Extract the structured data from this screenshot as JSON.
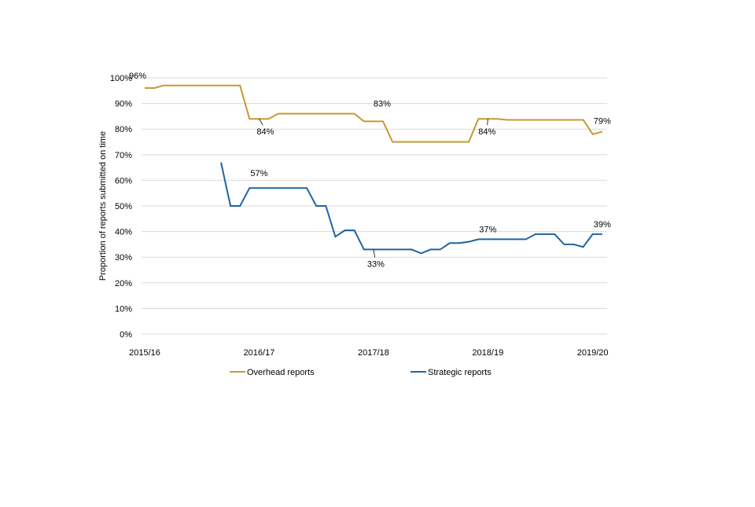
{
  "chart_data": {
    "type": "line",
    "title": "",
    "xlabel": "",
    "ylabel": "Proportion of reports submitted on time",
    "ylim": [
      0,
      100
    ],
    "y_ticks": [
      "0%",
      "10%",
      "20%",
      "30%",
      "40%",
      "50%",
      "60%",
      "70%",
      "80%",
      "90%",
      "100%"
    ],
    "x_tick_labels": [
      {
        "label": "2015/16",
        "index": 0
      },
      {
        "label": "2016/17",
        "index": 12
      },
      {
        "label": "2017/18",
        "index": 24
      },
      {
        "label": "2018/19",
        "index": 36
      },
      {
        "label": "2019/20",
        "index": 47
      }
    ],
    "grid": true,
    "legend_position": "bottom",
    "series": [
      {
        "name": "Overhead reports",
        "color": "#C39B2F",
        "values": [
          96,
          96,
          97,
          97,
          97,
          97,
          97,
          97,
          97,
          97,
          97,
          84,
          84,
          84,
          86,
          86,
          86,
          86,
          86,
          86,
          86,
          86,
          86,
          83,
          83,
          83,
          75,
          75,
          75,
          75,
          75,
          75,
          75,
          75,
          75,
          84,
          84,
          84,
          83.6,
          83.6,
          83.6,
          83.6,
          83.6,
          83.6,
          83.6,
          83.6,
          83.6,
          78,
          79
        ],
        "data_labels": [
          {
            "index": 0,
            "text": "96%"
          },
          {
            "index": 12,
            "text": "84%"
          },
          {
            "index": 24,
            "text": "83%"
          },
          {
            "index": 36,
            "text": "84%"
          },
          {
            "index": 48,
            "text": "79%"
          }
        ]
      },
      {
        "name": "Strategic reports",
        "color": "#1F64A0",
        "values": [
          null,
          null,
          null,
          null,
          null,
          null,
          null,
          null,
          67,
          50,
          50,
          57,
          57,
          57,
          57,
          57,
          57,
          57,
          50,
          50,
          38,
          40.5,
          40.5,
          33,
          33,
          33,
          33,
          33,
          33,
          31.5,
          33,
          33,
          35.5,
          35.5,
          36,
          37,
          37,
          37,
          37,
          37,
          37,
          39,
          39,
          39,
          35,
          35,
          34,
          39,
          39
        ],
        "data_labels": [
          {
            "index": 12,
            "text": "57%"
          },
          {
            "index": 24,
            "text": "33%"
          },
          {
            "index": 36,
            "text": "37%"
          },
          {
            "index": 48,
            "text": "39%"
          }
        ]
      }
    ]
  }
}
